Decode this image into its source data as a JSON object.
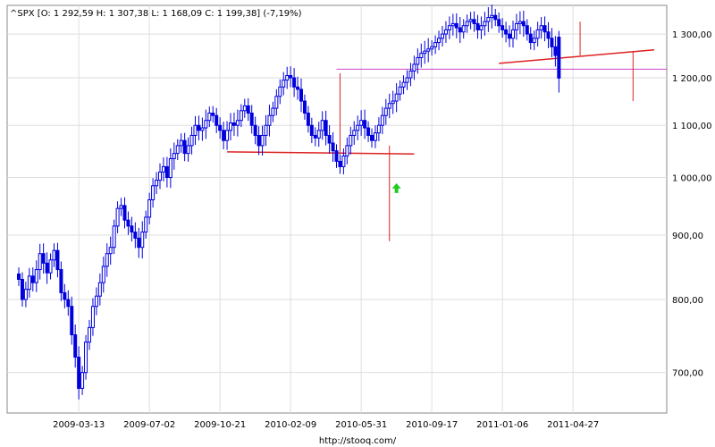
{
  "header": {
    "text": "^SPX [O: 1 292,59  H: 1 307,38  L: 1 168,09  C: 1 199,38] (-7,19%)"
  },
  "footer": {
    "url": "http://stooq.com/"
  },
  "colors": {
    "candle": "#0000dd",
    "grid": "#dedede",
    "trendline": "#dd2222",
    "magenta_line": "#cc44cc",
    "arrow": "#22cc22"
  },
  "chart_data": {
    "type": "candlestick",
    "title": "^SPX",
    "y_scale": "log",
    "ylim": [
      650,
      1370
    ],
    "y_ticks": [
      700,
      800,
      900,
      1000,
      1100,
      1200,
      1300
    ],
    "y_tick_labels": [
      "700,00",
      "800,00",
      "900,00",
      "1 000,00",
      "1 100,00",
      "1 200,00",
      "1 300,00"
    ],
    "x_tick_labels": [
      "2009-03-13",
      "2009-07-02",
      "2009-10-21",
      "2010-02-09",
      "2010-05-31",
      "2010-09-17",
      "2011-01-06",
      "2011-04-27"
    ],
    "x_tick_index": [
      17,
      37,
      57,
      77,
      97,
      117,
      137,
      157
    ],
    "grid": true,
    "last_bar": {
      "open": 1292.59,
      "high": 1307.38,
      "low": 1168.09,
      "close": 1199.38,
      "change": "-7,19%"
    },
    "key_levels": [
      {
        "name": "magenta-resistance",
        "value": 1219
      },
      {
        "name": "support-2010",
        "from_index": 59,
        "to_index": 112,
        "values": [
          1048,
          1044
        ]
      },
      {
        "name": "rising-trendline-2011",
        "from_index": 136,
        "to_index": 180,
        "values": [
          1232,
          1263
        ]
      }
    ],
    "close_series": [
      830,
      800,
      815,
      835,
      825,
      845,
      870,
      855,
      840,
      860,
      875,
      845,
      810,
      800,
      790,
      750,
      720,
      680,
      700,
      740,
      760,
      790,
      805,
      825,
      850,
      870,
      880,
      915,
      945,
      950,
      925,
      915,
      905,
      895,
      880,
      905,
      930,
      960,
      985,
      995,
      1010,
      1020,
      1000,
      1035,
      1045,
      1060,
      1070,
      1045,
      1060,
      1080,
      1100,
      1090,
      1095,
      1110,
      1125,
      1120,
      1100,
      1090,
      1070,
      1090,
      1105,
      1100,
      1110,
      1130,
      1140,
      1125,
      1100,
      1080,
      1060,
      1080,
      1100,
      1120,
      1135,
      1160,
      1180,
      1195,
      1205,
      1200,
      1180,
      1175,
      1150,
      1125,
      1100,
      1080,
      1075,
      1090,
      1110,
      1080,
      1065,
      1050,
      1030,
      1020,
      1040,
      1060,
      1080,
      1090,
      1100,
      1110,
      1095,
      1080,
      1070,
      1085,
      1100,
      1120,
      1135,
      1145,
      1150,
      1165,
      1180,
      1190,
      1200,
      1215,
      1230,
      1245,
      1255,
      1260,
      1265,
      1270,
      1280,
      1290,
      1300,
      1310,
      1320,
      1325,
      1315,
      1305,
      1320,
      1330,
      1335,
      1325,
      1310,
      1320,
      1330,
      1340,
      1345,
      1335,
      1320,
      1310,
      1300,
      1290,
      1310,
      1325,
      1330,
      1320,
      1300,
      1280,
      1290,
      1310,
      1320,
      1305,
      1290,
      1270,
      1250,
      1199
    ]
  }
}
